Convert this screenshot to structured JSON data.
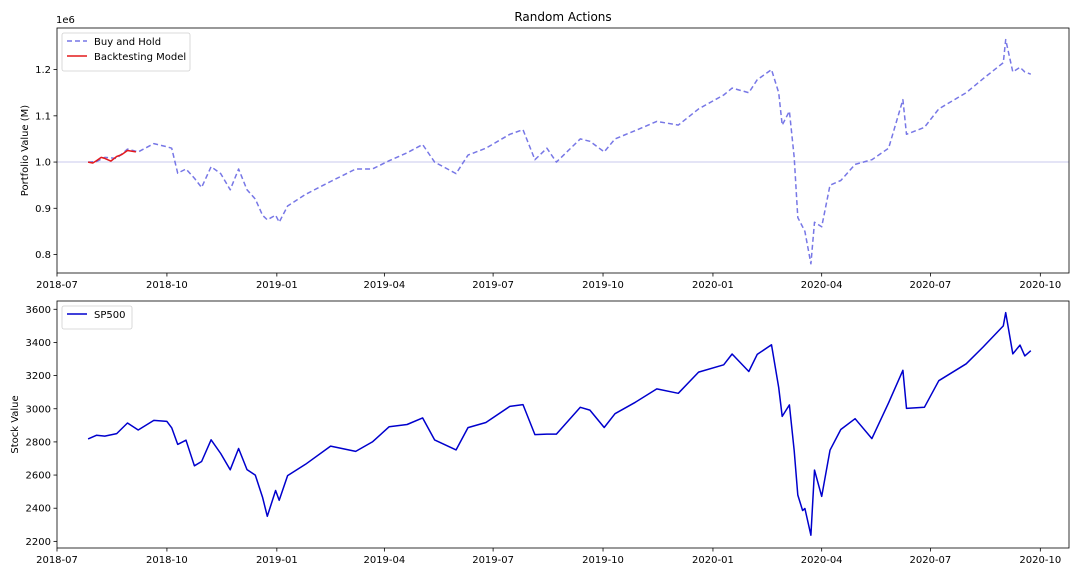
{
  "chart_data": [
    {
      "type": "line",
      "title": "Random Actions",
      "xlabel": "",
      "ylabel": "Portfolio Value (M)",
      "y_offset_label": "1e6",
      "xlim": [
        "2018-07-01",
        "2020-10-25"
      ],
      "ylim": [
        760000,
        1290000
      ],
      "yticks": [
        800000,
        900000,
        1000000,
        1100000,
        1200000
      ],
      "ytick_labels": [
        "0.8",
        "0.9",
        "1.0",
        "1.1",
        "1.2"
      ],
      "xticks": [
        "2018-07-01",
        "2018-10-01",
        "2019-01-01",
        "2019-04-01",
        "2019-07-01",
        "2019-10-01",
        "2020-01-01",
        "2020-04-01",
        "2020-07-01",
        "2020-10-01"
      ],
      "xtick_labels": [
        "2018-07",
        "2018-10",
        "2019-01",
        "2019-04",
        "2019-07",
        "2019-10",
        "2020-01",
        "2020-04",
        "2020-07",
        "2020-10"
      ],
      "reference_line": {
        "y": 1000000,
        "color": "#c9c9ee"
      },
      "legend": {
        "placement": "upper-left",
        "entries": [
          "Buy and Hold",
          "Backtesting Model"
        ]
      },
      "series": [
        {
          "name": "Buy and Hold",
          "style": "dashed",
          "color": "#7777e6",
          "points": [
            [
              "2018-07-27",
              1000000
            ],
            [
              "2018-08-03",
              1001000
            ],
            [
              "2018-08-10",
              1010000
            ],
            [
              "2018-08-20",
              1008000
            ],
            [
              "2018-08-29",
              1028000
            ],
            [
              "2018-09-07",
              1022000
            ],
            [
              "2018-09-20",
              1040000
            ],
            [
              "2018-10-01",
              1033000
            ],
            [
              "2018-10-05",
              1030000
            ],
            [
              "2018-10-10",
              976000
            ],
            [
              "2018-10-17",
              985000
            ],
            [
              "2018-10-24",
              965000
            ],
            [
              "2018-10-30",
              945000
            ],
            [
              "2018-11-07",
              990000
            ],
            [
              "2018-11-15",
              975000
            ],
            [
              "2018-11-23",
              940000
            ],
            [
              "2018-11-30",
              985000
            ],
            [
              "2018-12-07",
              940000
            ],
            [
              "2018-12-14",
              920000
            ],
            [
              "2018-12-20",
              885000
            ],
            [
              "2018-12-24",
              875000
            ],
            [
              "2018-12-31",
              885000
            ],
            [
              "2019-01-03",
              870000
            ],
            [
              "2019-01-10",
              905000
            ],
            [
              "2019-01-25",
              930000
            ],
            [
              "2019-02-15",
              958000
            ],
            [
              "2019-03-08",
              985000
            ],
            [
              "2019-03-22",
              985000
            ],
            [
              "2019-04-05",
              1003000
            ],
            [
              "2019-04-20",
              1020000
            ],
            [
              "2019-05-03",
              1038000
            ],
            [
              "2019-05-13",
              1000000
            ],
            [
              "2019-05-31",
              975000
            ],
            [
              "2019-06-10",
              1015000
            ],
            [
              "2019-06-25",
              1030000
            ],
            [
              "2019-07-15",
              1060000
            ],
            [
              "2019-07-26",
              1070000
            ],
            [
              "2019-08-05",
              1005000
            ],
            [
              "2019-08-15",
              1030000
            ],
            [
              "2019-08-23",
              1000000
            ],
            [
              "2019-09-12",
              1050000
            ],
            [
              "2019-09-20",
              1045000
            ],
            [
              "2019-10-02",
              1022000
            ],
            [
              "2019-10-11",
              1050000
            ],
            [
              "2019-10-28",
              1068000
            ],
            [
              "2019-11-15",
              1088000
            ],
            [
              "2019-12-03",
              1080000
            ],
            [
              "2019-12-20",
              1115000
            ],
            [
              "2020-01-10",
              1145000
            ],
            [
              "2020-01-17",
              1160000
            ],
            [
              "2020-01-31",
              1150000
            ],
            [
              "2020-02-07",
              1178000
            ],
            [
              "2020-02-19",
              1200000
            ],
            [
              "2020-02-25",
              1150000
            ],
            [
              "2020-02-28",
              1080000
            ],
            [
              "2020-03-05",
              1110000
            ],
            [
              "2020-03-09",
              1010000
            ],
            [
              "2020-03-12",
              880000
            ],
            [
              "2020-03-16",
              860000
            ],
            [
              "2020-03-18",
              850000
            ],
            [
              "2020-03-23",
              780000
            ],
            [
              "2020-03-26",
              870000
            ],
            [
              "2020-04-01",
              860000
            ],
            [
              "2020-04-08",
              950000
            ],
            [
              "2020-04-17",
              960000
            ],
            [
              "2020-04-29",
              995000
            ],
            [
              "2020-05-13",
              1005000
            ],
            [
              "2020-05-27",
              1030000
            ],
            [
              "2020-06-08",
              1135000
            ],
            [
              "2020-06-11",
              1060000
            ],
            [
              "2020-06-26",
              1075000
            ],
            [
              "2020-07-08",
              1115000
            ],
            [
              "2020-07-31",
              1150000
            ],
            [
              "2020-08-14",
              1180000
            ],
            [
              "2020-08-31",
              1215000
            ],
            [
              "2020-09-02",
              1265000
            ],
            [
              "2020-09-08",
              1195000
            ],
            [
              "2020-09-14",
              1205000
            ],
            [
              "2020-09-18",
              1195000
            ],
            [
              "2020-09-23",
              1190000
            ]
          ]
        },
        {
          "name": "Backtesting Model",
          "style": "solid",
          "color": "#e41a1c",
          "points": [
            [
              "2018-07-27",
              1000000
            ],
            [
              "2018-07-31",
              998000
            ],
            [
              "2018-08-03",
              1003000
            ],
            [
              "2018-08-07",
              1010000
            ],
            [
              "2018-08-10",
              1008000
            ],
            [
              "2018-08-15",
              1002000
            ],
            [
              "2018-08-20",
              1012000
            ],
            [
              "2018-08-24",
              1016000
            ],
            [
              "2018-08-29",
              1025000
            ],
            [
              "2018-09-05",
              1022000
            ]
          ]
        }
      ]
    },
    {
      "type": "line",
      "title": "",
      "xlabel": "",
      "ylabel": "Stock Value",
      "xlim": [
        "2018-07-01",
        "2020-10-25"
      ],
      "ylim": [
        2160,
        3650
      ],
      "yticks": [
        2200,
        2400,
        2600,
        2800,
        3000,
        3200,
        3400,
        3600
      ],
      "ytick_labels": [
        "2200",
        "2400",
        "2600",
        "2800",
        "3000",
        "3200",
        "3400",
        "3600"
      ],
      "xticks": [
        "2018-07-01",
        "2018-10-01",
        "2019-01-01",
        "2019-04-01",
        "2019-07-01",
        "2019-10-01",
        "2020-01-01",
        "2020-04-01",
        "2020-07-01",
        "2020-10-01"
      ],
      "xtick_labels": [
        "2018-07",
        "2018-10",
        "2019-01",
        "2019-04",
        "2019-07",
        "2019-10",
        "2020-01",
        "2020-04",
        "2020-07",
        "2020-10"
      ],
      "legend": {
        "placement": "upper-left",
        "entries": [
          "SP500"
        ]
      },
      "series": [
        {
          "name": "SP500",
          "style": "solid",
          "color": "#0000cd",
          "points": [
            [
              "2018-07-27",
              2818
            ],
            [
              "2018-08-03",
              2840
            ],
            [
              "2018-08-10",
              2835
            ],
            [
              "2018-08-20",
              2850
            ],
            [
              "2018-08-29",
              2914
            ],
            [
              "2018-09-07",
              2872
            ],
            [
              "2018-09-20",
              2930
            ],
            [
              "2018-10-01",
              2924
            ],
            [
              "2018-10-05",
              2885
            ],
            [
              "2018-10-10",
              2785
            ],
            [
              "2018-10-17",
              2810
            ],
            [
              "2018-10-24",
              2656
            ],
            [
              "2018-10-30",
              2682
            ],
            [
              "2018-11-07",
              2813
            ],
            [
              "2018-11-15",
              2730
            ],
            [
              "2018-11-23",
              2632
            ],
            [
              "2018-11-30",
              2760
            ],
            [
              "2018-12-07",
              2633
            ],
            [
              "2018-12-14",
              2600
            ],
            [
              "2018-12-20",
              2467
            ],
            [
              "2018-12-24",
              2351
            ],
            [
              "2018-12-31",
              2507
            ],
            [
              "2019-01-03",
              2448
            ],
            [
              "2019-01-10",
              2597
            ],
            [
              "2019-01-25",
              2665
            ],
            [
              "2019-02-15",
              2775
            ],
            [
              "2019-03-08",
              2743
            ],
            [
              "2019-03-22",
              2800
            ],
            [
              "2019-04-05",
              2892
            ],
            [
              "2019-04-20",
              2905
            ],
            [
              "2019-05-03",
              2945
            ],
            [
              "2019-05-13",
              2812
            ],
            [
              "2019-05-31",
              2752
            ],
            [
              "2019-06-10",
              2886
            ],
            [
              "2019-06-25",
              2917
            ],
            [
              "2019-07-15",
              3014
            ],
            [
              "2019-07-26",
              3025
            ],
            [
              "2019-08-05",
              2844
            ],
            [
              "2019-08-15",
              2847
            ],
            [
              "2019-08-23",
              2847
            ],
            [
              "2019-09-12",
              3009
            ],
            [
              "2019-09-20",
              2992
            ],
            [
              "2019-10-02",
              2887
            ],
            [
              "2019-10-11",
              2970
            ],
            [
              "2019-10-28",
              3039
            ],
            [
              "2019-11-15",
              3120
            ],
            [
              "2019-12-03",
              3093
            ],
            [
              "2019-12-20",
              3221
            ],
            [
              "2020-01-10",
              3265
            ],
            [
              "2020-01-17",
              3330
            ],
            [
              "2020-01-31",
              3225
            ],
            [
              "2020-02-07",
              3328
            ],
            [
              "2020-02-19",
              3386
            ],
            [
              "2020-02-25",
              3128
            ],
            [
              "2020-02-28",
              2954
            ],
            [
              "2020-03-05",
              3023
            ],
            [
              "2020-03-09",
              2747
            ],
            [
              "2020-03-12",
              2480
            ],
            [
              "2020-03-16",
              2386
            ],
            [
              "2020-03-18",
              2398
            ],
            [
              "2020-03-23",
              2237
            ],
            [
              "2020-03-26",
              2630
            ],
            [
              "2020-04-01",
              2471
            ],
            [
              "2020-04-08",
              2750
            ],
            [
              "2020-04-17",
              2875
            ],
            [
              "2020-04-29",
              2940
            ],
            [
              "2020-05-13",
              2820
            ],
            [
              "2020-05-27",
              3036
            ],
            [
              "2020-06-08",
              3232
            ],
            [
              "2020-06-11",
              3002
            ],
            [
              "2020-06-26",
              3009
            ],
            [
              "2020-07-08",
              3169
            ],
            [
              "2020-07-31",
              3271
            ],
            [
              "2020-08-14",
              3372
            ],
            [
              "2020-08-31",
              3500
            ],
            [
              "2020-09-02",
              3580
            ],
            [
              "2020-09-08",
              3331
            ],
            [
              "2020-09-14",
              3384
            ],
            [
              "2020-09-18",
              3319
            ],
            [
              "2020-09-23",
              3350
            ]
          ]
        }
      ]
    }
  ]
}
